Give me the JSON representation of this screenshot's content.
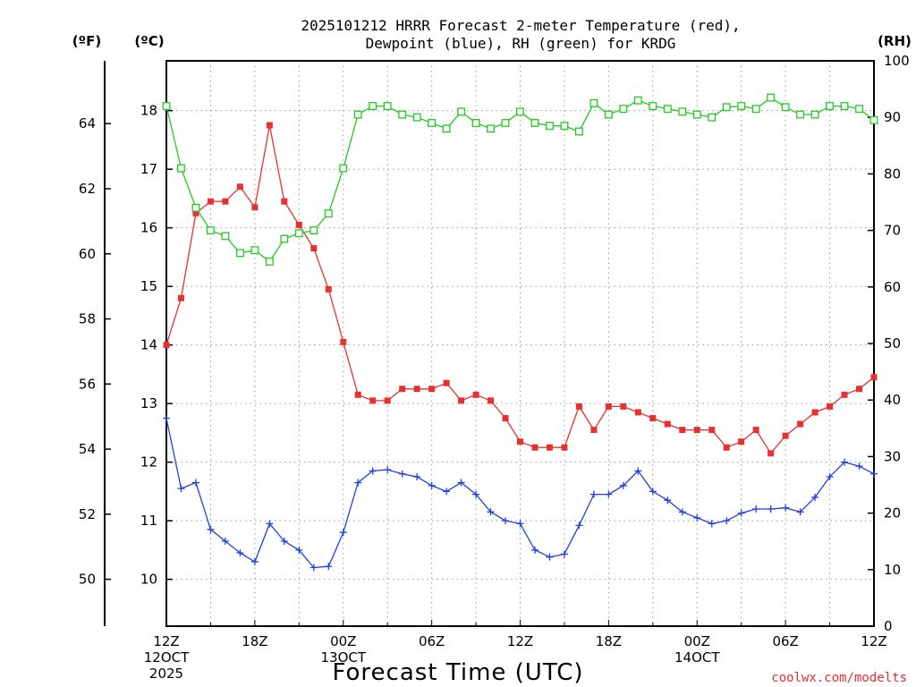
{
  "chart_data": {
    "type": "line",
    "title_lines": [
      "2025101212 HRRR Forecast 2-meter Temperature (red),",
      "Dewpoint (blue), RH (green) for KRDG"
    ],
    "xlabel": "Forecast Time (UTC)",
    "credit": "coolwx.com/modelts",
    "units": {
      "fahrenheit": "(ºF)",
      "celsius": "(ºC)",
      "rh": "(RH)"
    },
    "x": {
      "min": 0,
      "max": 48,
      "hours_per_step": 1
    },
    "x_ticks": [
      {
        "hour": 0,
        "lines": [
          "12Z",
          "12OCT",
          "2025"
        ]
      },
      {
        "hour": 6,
        "lines": [
          "18Z"
        ]
      },
      {
        "hour": 12,
        "lines": [
          "00Z",
          "13OCT"
        ]
      },
      {
        "hour": 18,
        "lines": [
          "06Z"
        ]
      },
      {
        "hour": 24,
        "lines": [
          "12Z"
        ]
      },
      {
        "hour": 30,
        "lines": [
          "18Z"
        ]
      },
      {
        "hour": 36,
        "lines": [
          "00Z",
          "14OCT"
        ]
      },
      {
        "hour": 42,
        "lines": [
          "06Z"
        ]
      },
      {
        "hour": 48,
        "lines": [
          "12Z"
        ]
      }
    ],
    "y_celsius": {
      "range": [
        9.2,
        18.85
      ],
      "ticks": [
        10,
        11,
        12,
        13,
        14,
        15,
        16,
        17,
        18
      ]
    },
    "y_fahrenheit": {
      "ticks": [
        50,
        52,
        54,
        56,
        58,
        60,
        62,
        64
      ]
    },
    "y_rh": {
      "range": [
        0,
        100
      ],
      "ticks": [
        0,
        10,
        20,
        30,
        40,
        50,
        60,
        70,
        80,
        90,
        100
      ]
    },
    "grid": true,
    "series": [
      {
        "key": "temperature",
        "axis": "celsius",
        "color": "#e83030",
        "marker": "filled-square",
        "values": [
          14.0,
          14.8,
          16.25,
          16.45,
          16.45,
          16.7,
          16.35,
          17.75,
          16.45,
          16.05,
          15.65,
          14.95,
          14.05,
          13.15,
          13.05,
          13.05,
          13.25,
          13.25,
          13.25,
          13.35,
          13.05,
          13.15,
          13.05,
          12.75,
          12.35,
          12.25,
          12.25,
          12.25,
          12.95,
          12.55,
          12.95,
          12.95,
          12.85,
          12.75,
          12.65,
          12.55,
          12.55,
          12.55,
          12.25,
          12.35,
          12.55,
          12.15,
          12.45,
          12.65,
          12.85,
          12.95,
          13.15,
          13.25,
          13.45
        ]
      },
      {
        "key": "dewpoint",
        "axis": "celsius",
        "color": "#2040e0",
        "marker": "plus",
        "values": [
          12.75,
          11.55,
          11.65,
          10.85,
          10.65,
          10.45,
          10.3,
          10.95,
          10.65,
          10.5,
          10.2,
          10.22,
          10.8,
          11.65,
          11.85,
          11.87,
          11.8,
          11.75,
          11.6,
          11.5,
          11.65,
          11.45,
          11.15,
          11.0,
          10.95,
          10.5,
          10.38,
          10.43,
          10.92,
          11.45,
          11.45,
          11.6,
          11.85,
          11.5,
          11.35,
          11.15,
          11.05,
          10.95,
          11.0,
          11.13,
          11.2,
          11.2,
          11.22,
          11.15,
          11.4,
          11.75,
          12.0,
          11.93,
          11.8
        ]
      },
      {
        "key": "rh",
        "axis": "rh",
        "color": "#20cc20",
        "marker": "open-square",
        "values": [
          92,
          81,
          74,
          70,
          69,
          66,
          66.5,
          64.5,
          68.5,
          69.5,
          70,
          73,
          81,
          90.5,
          92,
          92,
          90.5,
          90,
          89,
          88,
          91,
          89,
          88,
          89,
          91,
          89,
          88.5,
          88.5,
          87.5,
          92.5,
          90.5,
          91.5,
          93,
          92,
          91.5,
          91,
          90.5,
          90,
          91.8,
          92,
          91.5,
          93.5,
          91.8,
          90.5,
          90.5,
          92,
          92,
          91.5,
          89.5
        ]
      }
    ]
  }
}
